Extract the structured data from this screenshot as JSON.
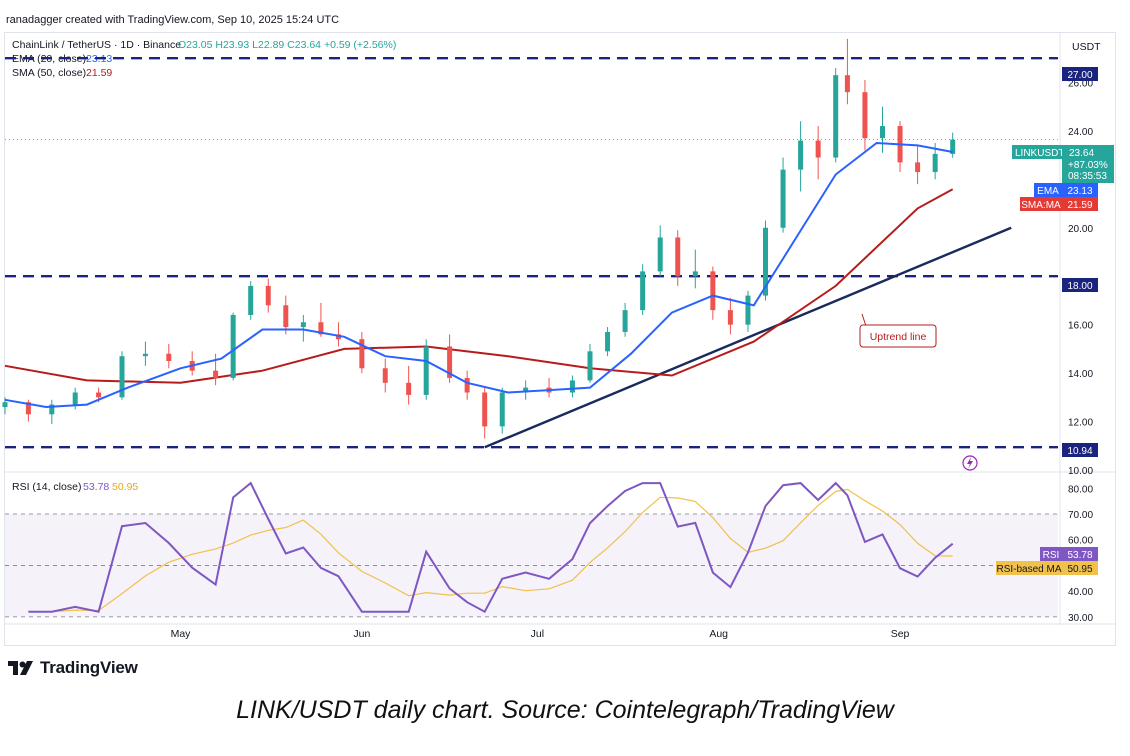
{
  "header": {
    "text": "ranadagger created with TradingView.com, Sep 10, 2025 15:24 UTC"
  },
  "legend": {
    "symbol": "ChainLink / TetherUS · 1D · Binance",
    "ohlc": "O23.05  H23.93  L22.89  C23.64  +0.59 (+2.56%)",
    "ema_label": "EMA (20, close)",
    "ema_value": "23.13",
    "sma_label": "SMA (50, close)",
    "sma_value": "21.59"
  },
  "price_axis": {
    "currency": "USDT",
    "ticks": [
      "26.00",
      "24.00",
      "20.00",
      "16.00",
      "14.00",
      "12.00",
      "10.00"
    ]
  },
  "levels": [
    {
      "label": "27.00",
      "value": 27.0
    },
    {
      "label": "18.00",
      "value": 18.0
    },
    {
      "label": "10.94",
      "value": 10.94
    }
  ],
  "badges": {
    "price_name": "LINKUSDT",
    "price_value": "23.64",
    "price_change": "+87.03%",
    "countdown": "08:35:53",
    "ema_name": "EMA",
    "ema_value": "23.13",
    "sma_name": "SMA:MA",
    "sma_value": "21.59"
  },
  "annotation": {
    "text": "Uptrend line"
  },
  "rsi": {
    "legend_label": "RSI (14, close)",
    "value": "53.78",
    "ma_value": "50.95",
    "badge_name": "RSI",
    "badge_value": "53.78",
    "ma_badge_name": "RSI-based MA",
    "ma_badge_value": "50.95",
    "ticks": [
      "80.00",
      "70.00",
      "60.00",
      "40.00",
      "30.00"
    ]
  },
  "x_axis": {
    "months": [
      "May",
      "Jun",
      "Jul",
      "Aug",
      "Sep"
    ]
  },
  "footer": {
    "brand": "TradingView"
  },
  "caption": "LINK/USDT daily chart. Source: Cointelegraph/TradingView",
  "colors": {
    "up": "#26a69a",
    "down": "#ef5350",
    "ema": "#2962ff",
    "sma": "#b71c1c",
    "levels": "#1a237e",
    "trendline": "#1a2a5c",
    "rsi": "#7e57c2",
    "rsi_ma": "#f0c14b"
  },
  "chart_data": {
    "type": "candlestick",
    "symbol": "ChainLink / TetherUS",
    "interval": "1D",
    "y_range": [
      10.0,
      28.0
    ],
    "x_range": [
      "2025-04-01",
      "2025-09-28"
    ],
    "series": [
      {
        "name": "EMA (20, close)",
        "points": [
          [
            "2025-04-01",
            12.9
          ],
          [
            "2025-04-08",
            12.6
          ],
          [
            "2025-04-15",
            12.7
          ],
          [
            "2025-04-22",
            13.4
          ],
          [
            "2025-05-01",
            14.2
          ],
          [
            "2025-05-08",
            14.6
          ],
          [
            "2025-05-15",
            15.8
          ],
          [
            "2025-05-22",
            15.8
          ],
          [
            "2025-05-29",
            15.5
          ],
          [
            "2025-06-05",
            14.7
          ],
          [
            "2025-06-12",
            14.5
          ],
          [
            "2025-06-19",
            13.6
          ],
          [
            "2025-06-26",
            13.2
          ],
          [
            "2025-07-03",
            13.3
          ],
          [
            "2025-07-10",
            13.4
          ],
          [
            "2025-07-17",
            14.8
          ],
          [
            "2025-07-24",
            16.5
          ],
          [
            "2025-07-31",
            17.2
          ],
          [
            "2025-08-07",
            16.8
          ],
          [
            "2025-08-14",
            19.5
          ],
          [
            "2025-08-21",
            22.2
          ],
          [
            "2025-08-28",
            23.5
          ],
          [
            "2025-09-04",
            23.4
          ],
          [
            "2025-09-10",
            23.13
          ]
        ]
      },
      {
        "name": "SMA (50, close)",
        "points": [
          [
            "2025-04-01",
            14.3
          ],
          [
            "2025-04-15",
            13.7
          ],
          [
            "2025-05-01",
            13.6
          ],
          [
            "2025-05-15",
            14.1
          ],
          [
            "2025-05-29",
            15.0
          ],
          [
            "2025-06-12",
            15.1
          ],
          [
            "2025-06-26",
            14.7
          ],
          [
            "2025-07-10",
            14.2
          ],
          [
            "2025-07-24",
            13.9
          ],
          [
            "2025-08-07",
            15.3
          ],
          [
            "2025-08-21",
            17.6
          ],
          [
            "2025-09-04",
            20.8
          ],
          [
            "2025-09-10",
            21.59
          ]
        ]
      }
    ],
    "candles": [
      [
        "2025-04-01",
        12.6,
        13.0,
        12.3,
        12.8
      ],
      [
        "2025-04-05",
        12.8,
        12.9,
        12.0,
        12.3
      ],
      [
        "2025-04-09",
        12.3,
        12.9,
        11.9,
        12.7
      ],
      [
        "2025-04-13",
        12.7,
        13.4,
        12.5,
        13.2
      ],
      [
        "2025-04-17",
        13.2,
        13.4,
        12.8,
        13.0
      ],
      [
        "2025-04-21",
        13.0,
        14.9,
        12.9,
        14.7
      ],
      [
        "2025-04-25",
        14.7,
        15.3,
        14.3,
        14.8
      ],
      [
        "2025-04-29",
        14.8,
        15.2,
        14.2,
        14.5
      ],
      [
        "2025-05-03",
        14.5,
        14.9,
        13.9,
        14.1
      ],
      [
        "2025-05-07",
        14.1,
        14.8,
        13.5,
        13.8
      ],
      [
        "2025-05-10",
        13.8,
        16.5,
        13.7,
        16.4
      ],
      [
        "2025-05-13",
        16.4,
        17.8,
        16.2,
        17.6
      ],
      [
        "2025-05-16",
        17.6,
        17.9,
        16.5,
        16.8
      ],
      [
        "2025-05-19",
        16.8,
        17.2,
        15.6,
        15.9
      ],
      [
        "2025-05-22",
        15.9,
        16.4,
        15.3,
        16.1
      ],
      [
        "2025-05-25",
        16.1,
        16.9,
        15.5,
        15.6
      ],
      [
        "2025-05-28",
        15.6,
        16.1,
        15.1,
        15.4
      ],
      [
        "2025-06-01",
        15.4,
        15.7,
        14.0,
        14.2
      ],
      [
        "2025-06-05",
        14.2,
        14.6,
        13.2,
        13.6
      ],
      [
        "2025-06-09",
        13.6,
        14.3,
        12.7,
        13.1
      ],
      [
        "2025-06-12",
        13.1,
        15.4,
        12.9,
        15.1
      ],
      [
        "2025-06-16",
        15.1,
        15.6,
        13.6,
        13.8
      ],
      [
        "2025-06-19",
        13.8,
        14.1,
        12.9,
        13.2
      ],
      [
        "2025-06-22",
        13.2,
        13.4,
        11.3,
        11.8
      ],
      [
        "2025-06-25",
        11.8,
        13.4,
        11.5,
        13.2
      ],
      [
        "2025-06-29",
        13.2,
        13.7,
        12.9,
        13.4
      ],
      [
        "2025-07-03",
        13.4,
        13.8,
        13.0,
        13.2
      ],
      [
        "2025-07-07",
        13.2,
        13.9,
        13.0,
        13.7
      ],
      [
        "2025-07-10",
        13.7,
        15.2,
        13.6,
        14.9
      ],
      [
        "2025-07-13",
        14.9,
        15.9,
        14.7,
        15.7
      ],
      [
        "2025-07-16",
        15.7,
        16.9,
        15.5,
        16.6
      ],
      [
        "2025-07-19",
        16.6,
        18.5,
        16.4,
        18.2
      ],
      [
        "2025-07-22",
        18.2,
        20.1,
        18.0,
        19.6
      ],
      [
        "2025-07-25",
        19.6,
        19.9,
        17.6,
        18.0
      ],
      [
        "2025-07-28",
        18.0,
        19.1,
        17.5,
        18.2
      ],
      [
        "2025-07-31",
        18.2,
        18.4,
        16.2,
        16.6
      ],
      [
        "2025-08-03",
        16.6,
        17.1,
        15.6,
        16.0
      ],
      [
        "2025-08-06",
        16.0,
        17.4,
        15.7,
        17.2
      ],
      [
        "2025-08-09",
        17.2,
        20.3,
        17.0,
        20.0
      ],
      [
        "2025-08-12",
        20.0,
        22.9,
        19.8,
        22.4
      ],
      [
        "2025-08-15",
        22.4,
        24.4,
        21.5,
        23.6
      ],
      [
        "2025-08-18",
        23.6,
        24.2,
        22.0,
        22.9
      ],
      [
        "2025-08-21",
        22.9,
        26.6,
        22.7,
        26.3
      ],
      [
        "2025-08-23",
        26.3,
        27.8,
        25.1,
        25.6
      ],
      [
        "2025-08-26",
        25.6,
        26.1,
        23.2,
        23.7
      ],
      [
        "2025-08-29",
        23.7,
        25.0,
        23.1,
        24.2
      ],
      [
        "2025-09-01",
        24.2,
        24.4,
        22.3,
        22.7
      ],
      [
        "2025-09-04",
        22.7,
        23.4,
        21.8,
        22.3
      ],
      [
        "2025-09-07",
        22.3,
        23.5,
        22.0,
        23.05
      ],
      [
        "2025-09-10",
        23.05,
        23.93,
        22.89,
        23.64
      ]
    ],
    "levels": [
      27.0,
      18.0,
      10.94
    ],
    "trendline": {
      "name": "Uptrend line",
      "from": [
        "2025-06-22",
        10.94
      ],
      "to": [
        "2025-09-20",
        20.0
      ]
    }
  }
}
